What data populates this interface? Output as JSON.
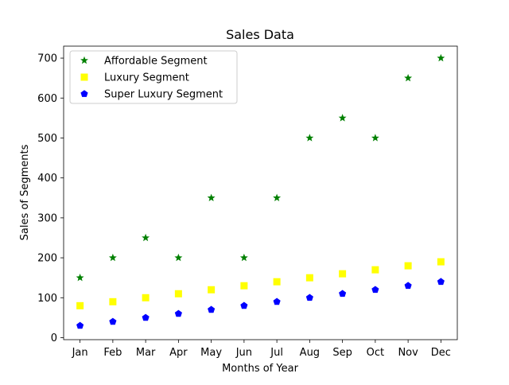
{
  "chart_data": {
    "type": "scatter",
    "title": "Sales Data",
    "xlabel": "Months of Year",
    "ylabel": "Sales of Segments",
    "categories": [
      "Jan",
      "Feb",
      "Mar",
      "Apr",
      "May",
      "Jun",
      "Jul",
      "Aug",
      "Sep",
      "Oct",
      "Nov",
      "Dec"
    ],
    "ylim": [
      -5,
      730
    ],
    "yticks": [
      0,
      100,
      200,
      300,
      400,
      500,
      600,
      700
    ],
    "grid": false,
    "legend_position": "upper-left",
    "series": [
      {
        "name": "Affordable Segment",
        "marker": "star",
        "color": "#008000",
        "values": [
          150,
          200,
          250,
          200,
          350,
          200,
          350,
          500,
          550,
          500,
          650,
          700
        ]
      },
      {
        "name": "Luxury Segment",
        "marker": "square",
        "color": "#ffff00",
        "values": [
          80,
          90,
          100,
          110,
          120,
          130,
          140,
          150,
          160,
          170,
          180,
          190
        ]
      },
      {
        "name": "Super Luxury Segment",
        "marker": "pentagon",
        "color": "#0000ff",
        "values": [
          30,
          40,
          50,
          60,
          70,
          80,
          90,
          100,
          110,
          120,
          130,
          140
        ]
      }
    ]
  }
}
